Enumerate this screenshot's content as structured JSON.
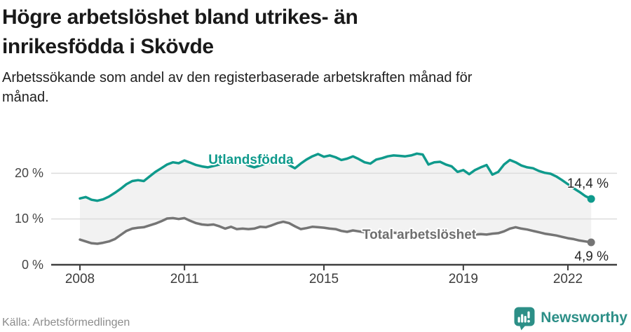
{
  "header": {
    "title_lines": [
      "Högre arbetslöshet bland utrikes- än",
      "inrikesfödda i Skövde"
    ],
    "subtitle_lines": [
      "Arbetssökande som andel av den registerbaserade arbetskraften månad för",
      "månad."
    ]
  },
  "footer": {
    "source": "Källa: Arbetsförmedlingen",
    "brand": "Newsworthy",
    "brand_color": "#2c8f87"
  },
  "chart_data": {
    "type": "line",
    "x_start": 2008.0,
    "x_step_years": 0.16667,
    "x_end": 2022.667,
    "xlabel": "",
    "ylabel": "",
    "ylim": [
      0,
      27.5
    ],
    "grid": true,
    "grid_color": "#dcdcdc",
    "axis_color": "#3f3f3f",
    "band_fill": "#f2f2f2",
    "x_ticks": [
      {
        "year": 2008,
        "label": "2008"
      },
      {
        "year": 2011,
        "label": "2011"
      },
      {
        "year": 2015,
        "label": "2015"
      },
      {
        "year": 2019,
        "label": "2019"
      },
      {
        "year": 2022,
        "label": "2022"
      }
    ],
    "y_ticks": [
      {
        "value": 20,
        "label": "20 %"
      },
      {
        "value": 10,
        "label": "10 %"
      },
      {
        "value": 0,
        "label": "0 %"
      }
    ],
    "series": [
      {
        "name": "Utlandsfödda",
        "color": "#0f9a8c",
        "end_value": 14.4,
        "end_label": "14,4 %",
        "values": [
          14.5,
          14.8,
          14.2,
          14.0,
          14.3,
          14.9,
          15.7,
          16.6,
          17.6,
          18.3,
          18.5,
          18.3,
          19.3,
          20.3,
          21.1,
          21.9,
          22.4,
          22.2,
          22.8,
          22.3,
          21.8,
          21.5,
          21.3,
          21.6,
          21.9,
          23.0,
          22.5,
          22.1,
          22.4,
          21.7,
          21.3,
          21.7,
          22.1,
          22.3,
          22.5,
          23.6,
          21.8,
          21.1,
          22.1,
          23.0,
          23.7,
          24.2,
          23.6,
          23.9,
          23.5,
          22.9,
          23.2,
          23.7,
          23.1,
          22.4,
          22.1,
          23.0,
          23.3,
          23.7,
          23.9,
          23.8,
          23.7,
          23.9,
          24.3,
          24.1,
          21.9,
          22.4,
          22.5,
          21.9,
          21.5,
          20.3,
          20.7,
          19.8,
          20.7,
          21.3,
          21.8,
          19.7,
          20.3,
          21.9,
          22.9,
          22.4,
          21.7,
          21.3,
          21.1,
          20.5,
          20.1,
          19.9,
          19.3,
          18.5,
          17.6,
          16.7,
          15.9,
          15.0,
          14.4
        ]
      },
      {
        "name": "Total arbetslöshet",
        "color": "#757575",
        "end_value": 4.9,
        "end_label": "4,9 %",
        "values": [
          5.5,
          5.1,
          4.7,
          4.6,
          4.8,
          5.1,
          5.6,
          6.5,
          7.4,
          7.9,
          8.1,
          8.2,
          8.6,
          9.0,
          9.5,
          10.1,
          10.2,
          10.0,
          10.2,
          9.6,
          9.1,
          8.8,
          8.7,
          8.8,
          8.4,
          7.9,
          8.3,
          7.8,
          7.9,
          7.8,
          7.9,
          8.3,
          8.2,
          8.6,
          9.1,
          9.4,
          9.1,
          8.4,
          7.8,
          8.0,
          8.3,
          8.2,
          8.1,
          7.9,
          7.8,
          7.4,
          7.2,
          7.5,
          7.3,
          7.1,
          7.0,
          7.1,
          7.2,
          7.1,
          7.0,
          6.9,
          6.8,
          6.9,
          7.0,
          6.9,
          6.8,
          6.7,
          6.6,
          6.7,
          6.8,
          6.7,
          6.6,
          6.5,
          6.6,
          6.7,
          6.6,
          6.8,
          6.9,
          7.3,
          7.9,
          8.2,
          7.9,
          7.7,
          7.4,
          7.1,
          6.8,
          6.6,
          6.4,
          6.1,
          5.8,
          5.6,
          5.3,
          5.1,
          4.9
        ]
      }
    ]
  }
}
